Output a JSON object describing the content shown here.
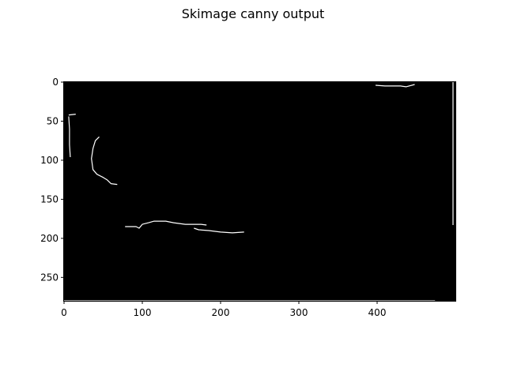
{
  "figure": {
    "title": "Skimage canny output"
  },
  "image_axes": {
    "x_ticks": [
      0,
      100,
      200,
      300,
      400
    ],
    "y_ticks": [
      0,
      50,
      100,
      150,
      200,
      250
    ],
    "x_range": [
      0,
      500
    ],
    "y_range": [
      0,
      280
    ],
    "background_color": "#000000",
    "edge_color": "#ffffff"
  },
  "edges": [
    [
      [
        6,
        42
      ],
      [
        15,
        41
      ]
    ],
    [
      [
        6,
        44
      ],
      [
        7,
        60
      ],
      [
        7,
        80
      ],
      [
        8,
        96
      ]
    ],
    [
      [
        45,
        70
      ],
      [
        40,
        75
      ],
      [
        37,
        85
      ],
      [
        35,
        98
      ],
      [
        37,
        112
      ],
      [
        42,
        118
      ],
      [
        50,
        122
      ],
      [
        55,
        125
      ],
      [
        60,
        130
      ],
      [
        68,
        131
      ]
    ],
    [
      [
        78,
        185
      ],
      [
        92,
        185
      ],
      [
        96,
        187
      ],
      [
        100,
        182
      ],
      [
        108,
        180
      ],
      [
        115,
        178
      ],
      [
        130,
        178
      ],
      [
        140,
        180
      ],
      [
        155,
        182
      ],
      [
        175,
        182
      ],
      [
        182,
        183
      ]
    ],
    [
      [
        166,
        187
      ],
      [
        172,
        189
      ],
      [
        185,
        190
      ],
      [
        200,
        192
      ],
      [
        215,
        193
      ],
      [
        230,
        192
      ]
    ],
    [
      [
        398,
        4
      ],
      [
        410,
        5
      ],
      [
        430,
        5
      ],
      [
        437,
        6
      ],
      [
        448,
        3
      ]
    ],
    [
      [
        497,
        0
      ],
      [
        497,
        183
      ]
    ],
    [
      [
        0,
        280
      ],
      [
        474,
        280
      ]
    ]
  ]
}
